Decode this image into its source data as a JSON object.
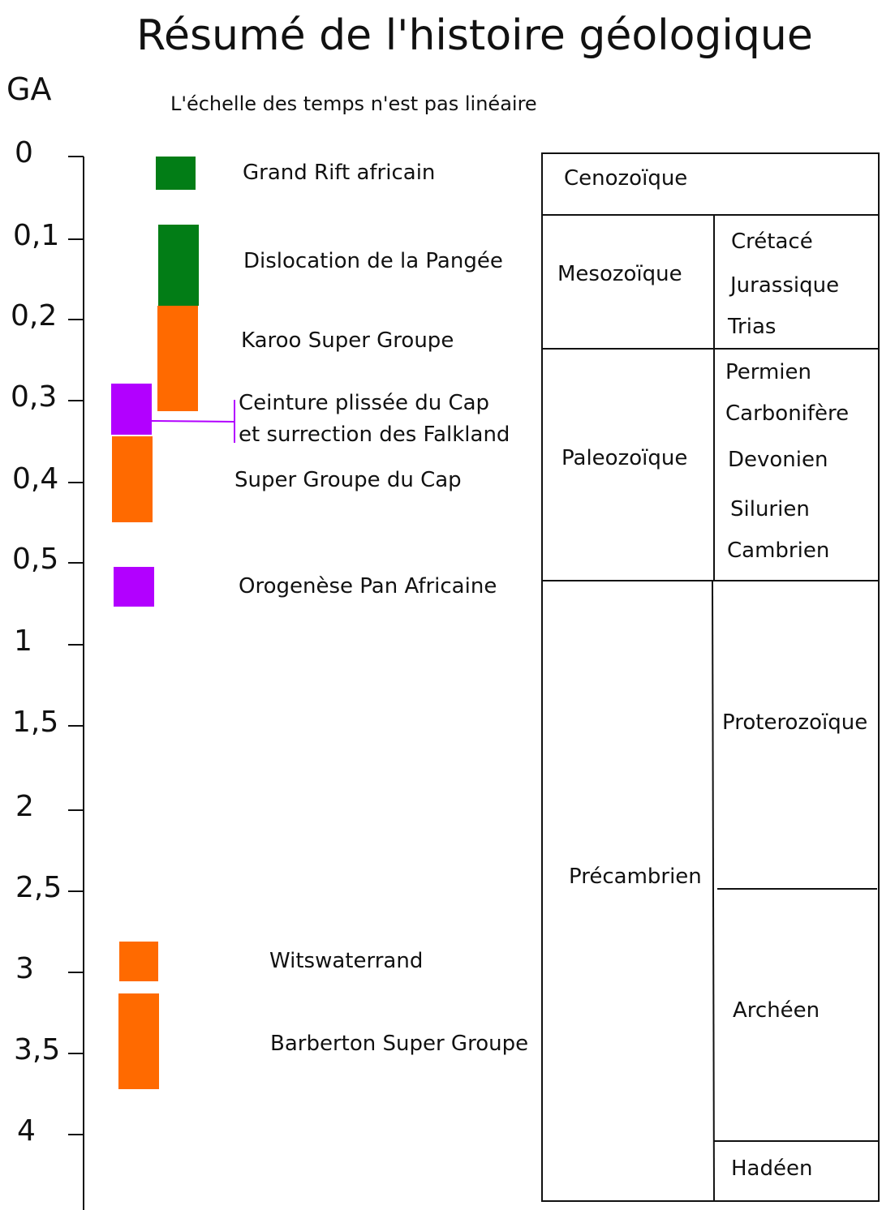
{
  "title": "Résumé de l'histoire géologique",
  "unit_label": "GA",
  "subtitle": "L'échelle des temps n'est pas linéaire",
  "colors": {
    "green": "#027d16",
    "orange": "#ff6a00",
    "purple": "#b200ff",
    "line": "#111111"
  },
  "axis": {
    "ticks": [
      "0",
      "0,1",
      "0,2",
      "0,3",
      "0,4",
      "0,5",
      "1",
      "1,5",
      "2",
      "2,5",
      "3",
      "3,5",
      "4"
    ]
  },
  "events": [
    {
      "label": "Grand Rift africain",
      "color": "green"
    },
    {
      "label": "Dislocation de la Pangée",
      "color": "green"
    },
    {
      "label": "Karoo Super Groupe",
      "color": "orange"
    },
    {
      "label": "Ceinture plissée du Cap",
      "label2": "et surrection des Falkland",
      "color": "purple"
    },
    {
      "label": "Super Groupe du Cap",
      "color": "orange"
    },
    {
      "label": "Orogenèse Pan Africaine",
      "color": "purple"
    },
    {
      "label": "Witswaterrand",
      "color": "orange"
    },
    {
      "label": "Barberton Super Groupe",
      "color": "orange"
    }
  ],
  "eras": [
    {
      "name": "Cenozoïque",
      "periods": []
    },
    {
      "name": "Mesozoïque",
      "periods": [
        "Crétacé",
        "Jurassique",
        "Trias"
      ]
    },
    {
      "name": "Paleozoïque",
      "periods": [
        "Permien",
        "Carbonifère",
        "Devonien",
        "Silurien",
        "Cambrien"
      ]
    },
    {
      "name": "Précambrien",
      "periods": [
        "Proterozoïque",
        "Archéen",
        "Hadéen"
      ]
    }
  ]
}
